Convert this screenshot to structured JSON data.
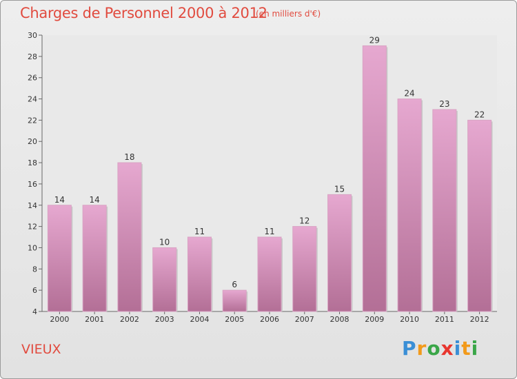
{
  "header": {
    "title": "Charges de Personnel 2000 à 2012",
    "subtitle": "(en milliers d'€)"
  },
  "commune": "VIEUX",
  "logo": {
    "text": "Proxiti",
    "letters": [
      {
        "char": "P",
        "color": "#3a8fd6"
      },
      {
        "char": "r",
        "color": "#f29a1b"
      },
      {
        "char": "o",
        "color": "#3aa648"
      },
      {
        "char": "x",
        "color": "#e8362f"
      },
      {
        "char": "i",
        "color": "#3a8fd6"
      },
      {
        "char": "t",
        "color": "#f29a1b"
      },
      {
        "char": "i",
        "color": "#3aa648"
      }
    ]
  },
  "colors": {
    "bar_light": "#e6a8d0",
    "bar_dark": "#b36f96",
    "accent": "#e14b3f"
  },
  "chart_data": {
    "type": "bar",
    "title": "Charges de Personnel 2000 à 2012",
    "subtitle": "(en milliers d'€)",
    "xlabel": "",
    "ylabel": "",
    "categories": [
      "2000",
      "2001",
      "2002",
      "2003",
      "2004",
      "2005",
      "2006",
      "2007",
      "2008",
      "2009",
      "2010",
      "2011",
      "2012"
    ],
    "values": [
      14,
      14,
      18,
      10,
      11,
      6,
      11,
      12,
      15,
      29,
      24,
      23,
      22
    ],
    "ylim": [
      4,
      30
    ],
    "yticks": [
      4,
      6,
      8,
      10,
      12,
      14,
      16,
      18,
      20,
      22,
      24,
      26,
      28,
      30
    ],
    "grid": false,
    "legend": "none"
  }
}
